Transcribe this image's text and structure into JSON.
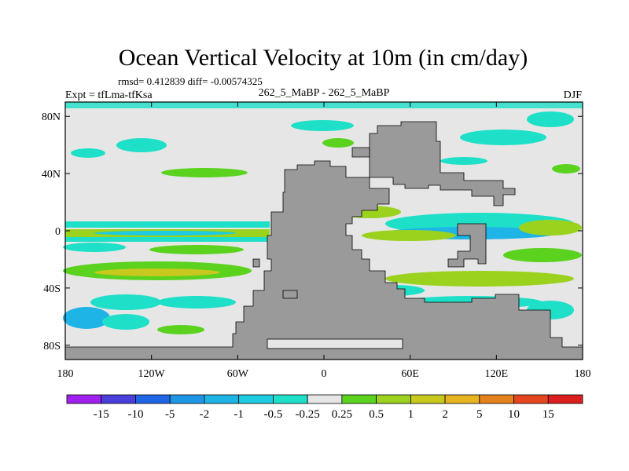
{
  "chart_data": {
    "type": "heatmap",
    "title": "Ocean Vertical Velocity at 10m (in cm/day)",
    "stats_line": "rmsd= 0.412839 diff= -0.00574325",
    "experiment_label": "Expt = tfLma-tfKsa",
    "comparison_label": "262_5_MaBP - 262_5_MaBP",
    "season": "DJF",
    "x_ticks": [
      {
        "value": -180,
        "label": "180"
      },
      {
        "value": -120,
        "label": "120W"
      },
      {
        "value": -60,
        "label": "60W"
      },
      {
        "value": 0,
        "label": "0"
      },
      {
        "value": 60,
        "label": "60E"
      },
      {
        "value": 120,
        "label": "120E"
      },
      {
        "value": 180,
        "label": "180"
      }
    ],
    "y_ticks": [
      {
        "value": 80,
        "label": "80N"
      },
      {
        "value": 40,
        "label": "40N"
      },
      {
        "value": 0,
        "label": "0"
      },
      {
        "value": -40,
        "label": "40S"
      },
      {
        "value": -80,
        "label": "80S"
      }
    ],
    "xlim": [
      -180,
      180
    ],
    "ylim": [
      -90,
      90
    ],
    "colorbar": {
      "boundaries": [
        "-15",
        "-10",
        "-5",
        "-2",
        "-1",
        "-0.5",
        "-0.25",
        "0.25",
        "0.5",
        "1",
        "2",
        "5",
        "10",
        "15"
      ],
      "colors": [
        "#a020f0",
        "#4b3fdc",
        "#1e66e6",
        "#1e96e6",
        "#1eb4e6",
        "#1ecbe0",
        "#1ee0c8",
        "#e6e6e6",
        "#5ad21e",
        "#9ad21e",
        "#c8c81e",
        "#e6b41e",
        "#e6821e",
        "#e6461e",
        "#dc1e1e"
      ]
    },
    "land_mask_color": "#9a9a9a",
    "near_zero_color": "#e6e6e6"
  }
}
